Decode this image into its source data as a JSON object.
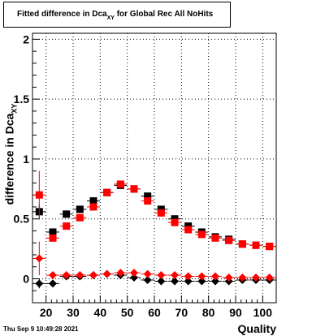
{
  "header": {
    "title_main": "Fitted difference in Dca",
    "title_sub": "XY",
    "title_rest": " for Global Rec All NoHits"
  },
  "footer": {
    "timestamp": "Thu Sep  9 10:49:28 2021"
  },
  "chart_data": {
    "type": "scatter",
    "title": "Fitted difference in Dca_XY for Global Rec All NoHits",
    "xlabel": "Quality",
    "ylabel": "difference in Dca_XY",
    "xlim": [
      15,
      105
    ],
    "ylim": [
      -0.2,
      2.05
    ],
    "grid": true,
    "x_ticks": [
      20,
      30,
      40,
      50,
      60,
      70,
      80,
      90,
      100
    ],
    "x_tick_labels": [
      "20",
      "30",
      "40",
      "50",
      "60",
      "70",
      "80",
      "90",
      "100"
    ],
    "y_ticks": [
      0,
      0.5,
      1,
      1.5,
      2
    ],
    "y_tick_labels": [
      "0",
      "0.5",
      "1",
      "1.5",
      "2"
    ],
    "x": [
      17.5,
      22.5,
      27.5,
      32.5,
      37.5,
      42.5,
      47.5,
      52.5,
      57.5,
      62.5,
      67.5,
      72.5,
      77.5,
      82.5,
      87.5,
      92.5,
      97.5,
      102.5
    ],
    "series": [
      {
        "marker": "square",
        "color": "#000000",
        "values": [
          0.56,
          0.39,
          0.54,
          0.58,
          0.65,
          0.72,
          0.78,
          0.75,
          0.69,
          0.58,
          0.5,
          0.44,
          0.39,
          0.35,
          0.33,
          0.29,
          0.28,
          0.27
        ],
        "errors": [
          0.06,
          0.02,
          0.01,
          0.01,
          0.01,
          0.01,
          0.01,
          0.01,
          0.01,
          0.01,
          0.01,
          0.01,
          0.01,
          0.01,
          0.01,
          0.01,
          0.01,
          0.01
        ]
      },
      {
        "marker": "square",
        "color": "#ff0000",
        "values": [
          0.7,
          0.34,
          0.44,
          0.51,
          0.6,
          0.72,
          0.79,
          0.75,
          0.65,
          0.55,
          0.47,
          0.41,
          0.37,
          0.34,
          0.32,
          0.29,
          0.28,
          0.27
        ],
        "errors": [
          0.2,
          0.03,
          0.02,
          0.01,
          0.01,
          0.01,
          0.01,
          0.01,
          0.01,
          0.01,
          0.01,
          0.01,
          0.01,
          0.01,
          0.01,
          0.01,
          0.01,
          0.01
        ]
      },
      {
        "marker": "diamond",
        "color": "#000000",
        "values": [
          -0.04,
          -0.04,
          0.02,
          0.02,
          0.03,
          0.04,
          0.03,
          0.01,
          -0.01,
          -0.02,
          -0.02,
          -0.02,
          -0.02,
          -0.02,
          -0.02,
          -0.01,
          -0.01,
          -0.01
        ],
        "errors": [
          0.04,
          0.01,
          0.01,
          0.01,
          0.01,
          0.01,
          0.01,
          0.01,
          0.01,
          0.01,
          0.01,
          0.01,
          0.01,
          0.01,
          0.01,
          0.01,
          0.01,
          0.01
        ]
      },
      {
        "marker": "diamond",
        "color": "#ff0000",
        "values": [
          0.17,
          0.03,
          0.03,
          0.03,
          0.03,
          0.04,
          0.05,
          0.05,
          0.04,
          0.03,
          0.03,
          0.02,
          0.02,
          0.02,
          0.01,
          0.01,
          0.01,
          0.01
        ],
        "errors": [
          0.14,
          0.01,
          0.01,
          0.01,
          0.01,
          0.01,
          0.01,
          0.01,
          0.01,
          0.01,
          0.01,
          0.01,
          0.01,
          0.01,
          0.01,
          0.01,
          0.01,
          0.01
        ]
      }
    ]
  }
}
